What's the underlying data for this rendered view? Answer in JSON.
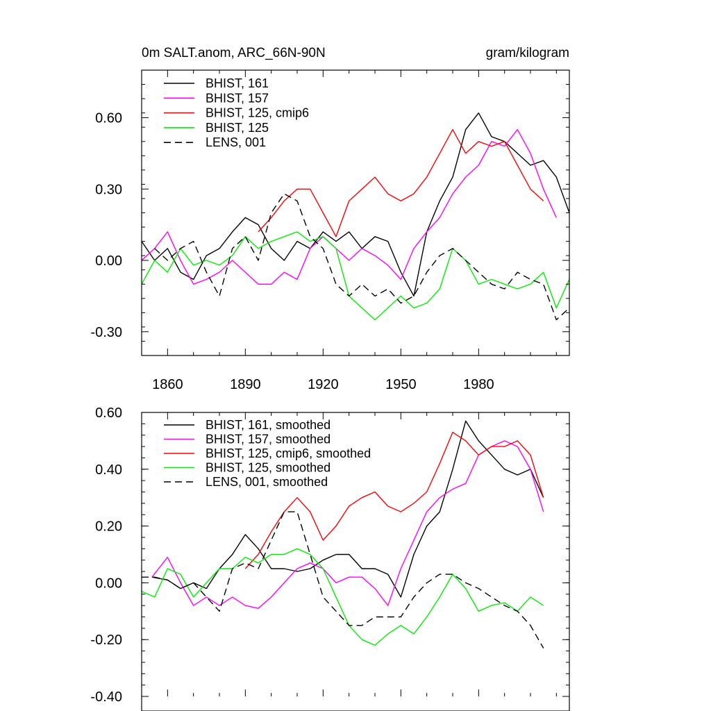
{
  "chart_data": [
    {
      "type": "line",
      "title": "0m SALT.anom, ARC_66N-90N",
      "units": "gram/kilogram",
      "xlim": [
        1850,
        2015
      ],
      "ylim": [
        -0.4,
        0.8
      ],
      "xticks": [
        1860,
        1890,
        1920,
        1950,
        1980
      ],
      "xtick_labels": [
        "1860",
        "1890",
        "1920",
        "1950",
        "1980"
      ],
      "yticks": [
        -0.3,
        0.0,
        0.3,
        0.6
      ],
      "ytick_labels": [
        "-0.30",
        "0.00",
        "0.30",
        "0.60"
      ],
      "legend_placement": "top-left",
      "series": [
        {
          "name": "BHIST, 161",
          "color": "#000000",
          "dash": "",
          "x": [
            1850,
            1855,
            1860,
            1865,
            1870,
            1875,
            1880,
            1885,
            1890,
            1895,
            1900,
            1905,
            1910,
            1915,
            1920,
            1925,
            1930,
            1935,
            1940,
            1945,
            1950,
            1955,
            1960,
            1965,
            1970,
            1975,
            1980,
            1985,
            1990,
            1995,
            2000,
            2005,
            2010,
            2015
          ],
          "y": [
            0.08,
            0.0,
            0.05,
            -0.05,
            -0.08,
            0.02,
            0.05,
            0.12,
            0.18,
            0.15,
            0.05,
            0.0,
            0.08,
            0.05,
            0.12,
            0.08,
            0.12,
            0.05,
            0.1,
            0.08,
            -0.05,
            -0.15,
            0.12,
            0.25,
            0.35,
            0.55,
            0.62,
            0.52,
            0.5,
            0.45,
            0.4,
            0.42,
            0.35,
            0.2
          ]
        },
        {
          "name": "BHIST, 157",
          "color": "#ff00ff",
          "dash": "",
          "x": [
            1850,
            1855,
            1860,
            1865,
            1870,
            1875,
            1880,
            1885,
            1890,
            1895,
            1900,
            1905,
            1910,
            1915,
            1920,
            1925,
            1930,
            1935,
            1940,
            1945,
            1950,
            1955,
            1960,
            1965,
            1970,
            1975,
            1980,
            1985,
            1990,
            1995,
            2000,
            2005,
            2010
          ],
          "y": [
            0.0,
            0.05,
            0.12,
            0.0,
            -0.1,
            -0.08,
            -0.05,
            0.0,
            -0.05,
            -0.1,
            -0.1,
            -0.05,
            -0.08,
            0.05,
            0.1,
            0.05,
            0.0,
            0.05,
            0.02,
            -0.02,
            -0.08,
            0.05,
            0.12,
            0.18,
            0.28,
            0.35,
            0.4,
            0.5,
            0.48,
            0.55,
            0.45,
            0.3,
            0.18
          ]
        },
        {
          "name": "BHIST, 125, cmip6",
          "color": "#ff0000",
          "dash": "",
          "x": [
            1895,
            1900,
            1905,
            1910,
            1915,
            1920,
            1925,
            1930,
            1935,
            1940,
            1945,
            1950,
            1955,
            1960,
            1965,
            1970,
            1975,
            1980,
            1985,
            1990,
            1995,
            2000,
            2005
          ],
          "y": [
            0.12,
            0.18,
            0.25,
            0.3,
            0.3,
            0.2,
            0.1,
            0.25,
            0.3,
            0.35,
            0.28,
            0.25,
            0.28,
            0.35,
            0.45,
            0.55,
            0.45,
            0.5,
            0.48,
            0.5,
            0.4,
            0.3,
            0.25
          ]
        },
        {
          "name": "BHIST, 125",
          "color": "#00ee00",
          "dash": "",
          "x": [
            1850,
            1855,
            1860,
            1865,
            1870,
            1875,
            1880,
            1885,
            1890,
            1895,
            1900,
            1905,
            1910,
            1915,
            1920,
            1925,
            1930,
            1935,
            1940,
            1945,
            1950,
            1955,
            1960,
            1965,
            1970,
            1975,
            1980,
            1985,
            1990,
            1995,
            2000,
            2005,
            2010,
            2015
          ],
          "y": [
            -0.1,
            0.0,
            -0.05,
            0.05,
            -0.02,
            0.0,
            -0.02,
            0.02,
            0.1,
            0.05,
            0.08,
            0.1,
            0.12,
            0.08,
            0.1,
            0.05,
            -0.15,
            -0.2,
            -0.25,
            -0.2,
            -0.15,
            -0.2,
            -0.18,
            -0.12,
            0.05,
            0.0,
            -0.1,
            -0.08,
            -0.1,
            -0.12,
            -0.1,
            -0.05,
            -0.2,
            -0.08
          ]
        },
        {
          "name": "LENS, 001",
          "color": "#000000",
          "dash": "10,6",
          "x": [
            1855,
            1860,
            1865,
            1870,
            1875,
            1880,
            1885,
            1890,
            1895,
            1900,
            1905,
            1910,
            1915,
            1920,
            1925,
            1930,
            1935,
            1940,
            1945,
            1950,
            1955,
            1960,
            1965,
            1970,
            1975,
            1980,
            1985,
            1990,
            1995,
            2000,
            2005,
            2010,
            2015
          ],
          "y": [
            0.05,
            0.0,
            0.05,
            0.08,
            -0.05,
            -0.15,
            0.05,
            0.1,
            0.0,
            0.2,
            0.28,
            0.25,
            0.1,
            0.05,
            -0.1,
            -0.15,
            -0.1,
            -0.15,
            -0.12,
            -0.18,
            -0.15,
            -0.05,
            0.02,
            0.05,
            0.0,
            -0.05,
            -0.1,
            -0.12,
            -0.05,
            -0.08,
            -0.1,
            -0.25,
            -0.2
          ]
        }
      ]
    },
    {
      "type": "line",
      "title": "",
      "xlim": [
        1850,
        2015
      ],
      "ylim": [
        -0.4,
        0.6
      ],
      "xticks": [
        1860,
        1890,
        1920,
        1950,
        1980
      ],
      "yticks": [
        -0.4,
        -0.2,
        0.0,
        0.2,
        0.4,
        0.6
      ],
      "ytick_labels": [
        "-0.40",
        "-0.20",
        "0.00",
        "0.20",
        "0.40",
        "0.60"
      ],
      "legend_placement": "top-left",
      "series": [
        {
          "name": "BHIST, 161, smoothed",
          "color": "#000000",
          "dash": "",
          "x": [
            1854,
            1860,
            1865,
            1870,
            1875,
            1880,
            1885,
            1890,
            1895,
            1900,
            1905,
            1910,
            1915,
            1920,
            1925,
            1930,
            1935,
            1940,
            1945,
            1950,
            1955,
            1960,
            1965,
            1970,
            1975,
            1980,
            1985,
            1990,
            1995,
            2000,
            2005
          ],
          "y": [
            0.02,
            0.01,
            -0.02,
            0.0,
            -0.02,
            0.05,
            0.1,
            0.17,
            0.12,
            0.05,
            0.05,
            0.04,
            0.05,
            0.08,
            0.1,
            0.1,
            0.05,
            0.05,
            0.03,
            -0.05,
            0.1,
            0.2,
            0.25,
            0.4,
            0.57,
            0.5,
            0.45,
            0.4,
            0.38,
            0.4,
            0.3
          ]
        },
        {
          "name": "BHIST, 157, smoothed",
          "color": "#ff00ff",
          "dash": "",
          "x": [
            1854,
            1860,
            1865,
            1870,
            1875,
            1880,
            1885,
            1890,
            1895,
            1900,
            1905,
            1910,
            1915,
            1920,
            1925,
            1930,
            1935,
            1940,
            1945,
            1950,
            1955,
            1960,
            1965,
            1970,
            1975,
            1980,
            1985,
            1990,
            1995,
            2000,
            2005
          ],
          "y": [
            0.02,
            0.09,
            0.0,
            -0.08,
            -0.05,
            -0.08,
            -0.05,
            -0.08,
            -0.09,
            -0.05,
            0.0,
            0.05,
            0.07,
            0.05,
            0.0,
            0.02,
            0.02,
            -0.02,
            -0.08,
            0.05,
            0.15,
            0.25,
            0.3,
            0.33,
            0.35,
            0.45,
            0.48,
            0.5,
            0.48,
            0.4,
            0.25
          ]
        },
        {
          "name": "BHIST, 125, cmip6, smoothed",
          "color": "#ff0000",
          "dash": "",
          "x": [
            1890,
            1895,
            1900,
            1905,
            1910,
            1915,
            1920,
            1925,
            1930,
            1935,
            1940,
            1945,
            1950,
            1955,
            1960,
            1965,
            1970,
            1975,
            1980,
            1985,
            1990,
            1995,
            2000,
            2005
          ],
          "y": [
            0.05,
            0.1,
            0.18,
            0.25,
            0.3,
            0.25,
            0.15,
            0.2,
            0.27,
            0.3,
            0.32,
            0.27,
            0.25,
            0.28,
            0.32,
            0.42,
            0.53,
            0.5,
            0.45,
            0.48,
            0.48,
            0.5,
            0.45,
            0.3
          ]
        },
        {
          "name": "BHIST, 125, smoothed",
          "color": "#00ee00",
          "dash": "",
          "x": [
            1850,
            1855,
            1860,
            1865,
            1870,
            1875,
            1880,
            1885,
            1890,
            1895,
            1900,
            1905,
            1910,
            1915,
            1920,
            1925,
            1930,
            1935,
            1940,
            1945,
            1950,
            1955,
            1960,
            1965,
            1970,
            1975,
            1980,
            1985,
            1990,
            1995,
            2000,
            2005
          ],
          "y": [
            -0.03,
            -0.05,
            0.05,
            0.03,
            -0.05,
            0.0,
            0.05,
            0.05,
            0.09,
            0.07,
            0.1,
            0.1,
            0.12,
            0.1,
            0.05,
            -0.05,
            -0.15,
            -0.2,
            -0.22,
            -0.18,
            -0.15,
            -0.18,
            -0.12,
            -0.05,
            0.03,
            -0.02,
            -0.1,
            -0.08,
            -0.07,
            -0.1,
            -0.05,
            -0.08
          ]
        },
        {
          "name": "LENS, 001, smoothed",
          "color": "#000000",
          "dash": "10,6",
          "x": [
            1850,
            1855,
            1860,
            1865,
            1870,
            1875,
            1880,
            1885,
            1890,
            1895,
            1900,
            1905,
            1910,
            1915,
            1920,
            1925,
            1930,
            1935,
            1940,
            1945,
            1950,
            1955,
            1960,
            1965,
            1970,
            1975,
            1980,
            1985,
            1990,
            1995,
            2000,
            2005
          ],
          "y": [
            0.02,
            0.02,
            0.01,
            -0.02,
            0.0,
            -0.05,
            -0.1,
            0.05,
            0.07,
            0.05,
            0.15,
            0.25,
            0.25,
            0.1,
            -0.05,
            -0.1,
            -0.15,
            -0.15,
            -0.12,
            -0.12,
            -0.12,
            -0.05,
            0.0,
            0.03,
            0.03,
            0.0,
            -0.02,
            -0.05,
            -0.08,
            -0.1,
            -0.15,
            -0.23
          ]
        }
      ]
    }
  ]
}
